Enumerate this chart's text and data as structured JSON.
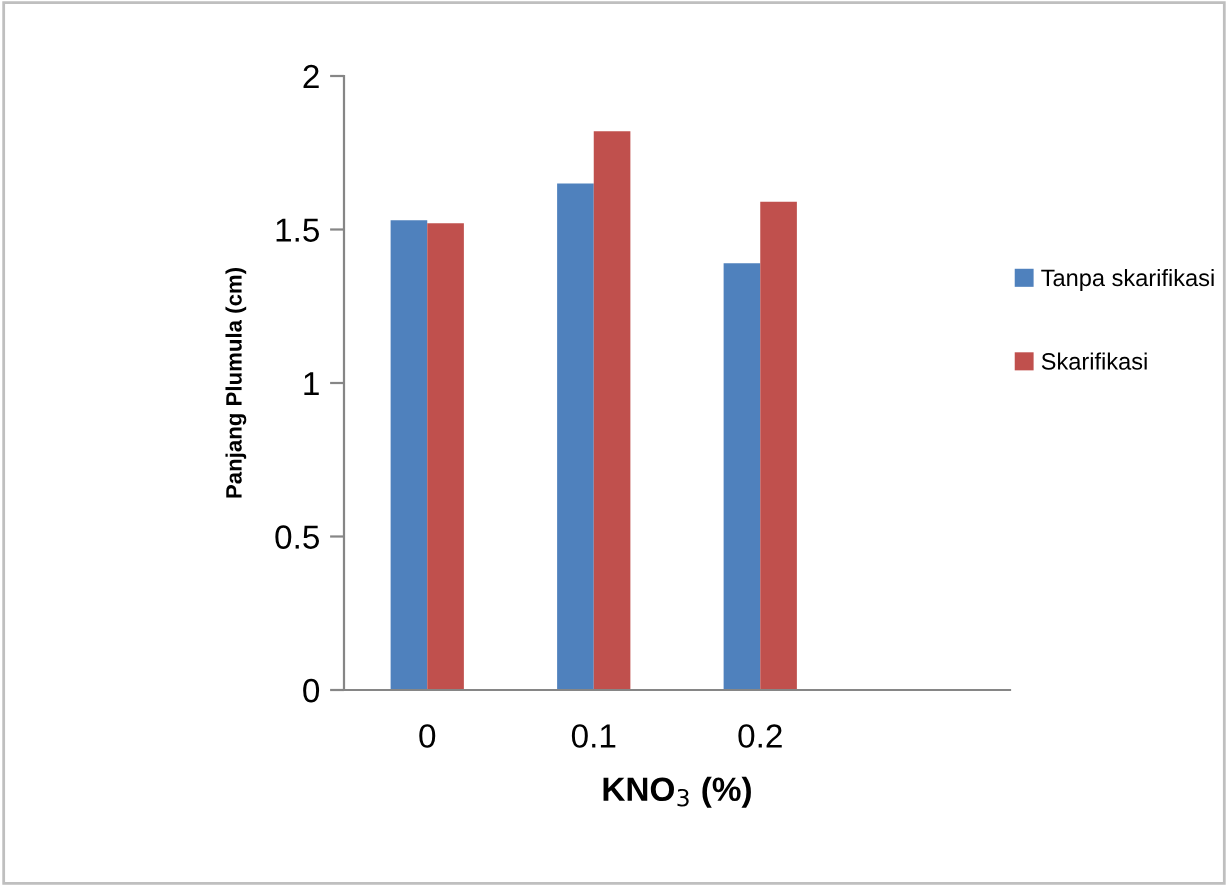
{
  "chart_data": {
    "type": "bar",
    "xlabel": "KNO$_{3}$ (%)",
    "ylabel": "Panjang Plumula (cm)",
    "categories": [
      "0",
      "0.1",
      "0.2",
      null
    ],
    "series": [
      {
        "name": "Tanpa skarifikasi",
        "color": "#4f81bd",
        "values": [
          1.53,
          1.65,
          1.39,
          null
        ]
      },
      {
        "name": "Skarifikasi",
        "color": "#c0504d",
        "values": [
          1.52,
          1.82,
          1.59,
          null
        ]
      }
    ],
    "ylim": [
      0,
      2
    ],
    "yticks": [
      0,
      0.5,
      1,
      1.5,
      2
    ],
    "grid": false,
    "legend": "right"
  }
}
